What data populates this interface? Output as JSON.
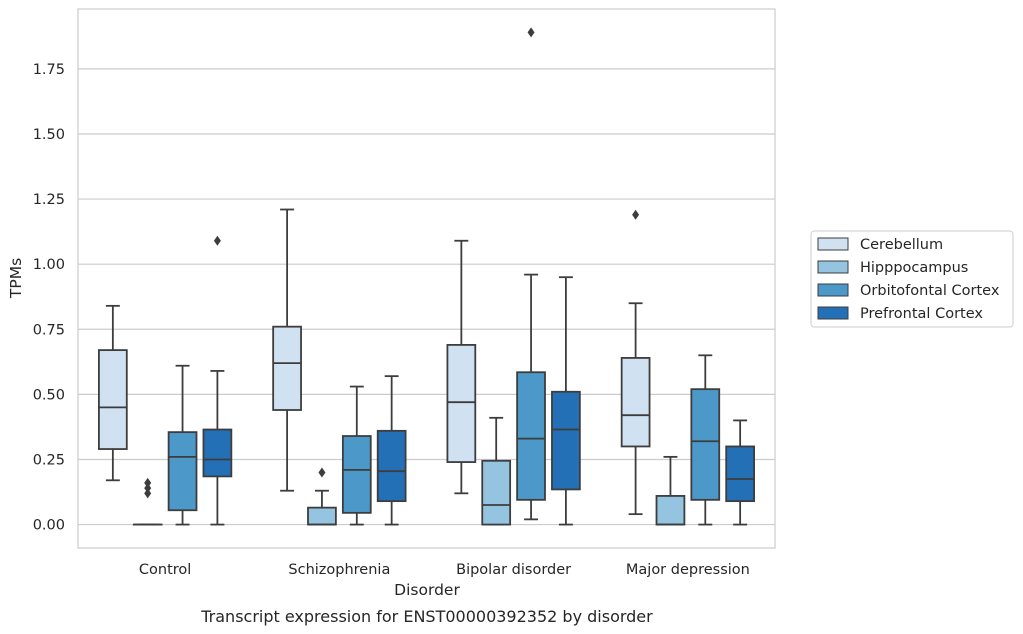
{
  "chart_data": {
    "type": "boxplot",
    "caption": "Transcript expression for ENST00000392352 by disorder",
    "xlabel": "Disorder",
    "ylabel": "TPMs",
    "categories": [
      "Control",
      "Schizophrenia",
      "Bipolar disorder",
      "Major depression"
    ],
    "y_ticks": [
      "0.00",
      "0.25",
      "0.50",
      "0.75",
      "1.00",
      "1.25",
      "1.50",
      "1.75"
    ],
    "ylim": [
      -0.09,
      1.98
    ],
    "grid": "horizontal",
    "legend_position": "right",
    "series": [
      {
        "name": "Cerebellum",
        "color": "#d0e1f2",
        "boxes": [
          {
            "whislo": 0.17,
            "q1": 0.29,
            "med": 0.45,
            "q3": 0.67,
            "whishi": 0.84,
            "fliers": []
          },
          {
            "whislo": 0.13,
            "q1": 0.44,
            "med": 0.62,
            "q3": 0.76,
            "whishi": 1.21,
            "fliers": []
          },
          {
            "whislo": 0.12,
            "q1": 0.24,
            "med": 0.47,
            "q3": 0.69,
            "whishi": 1.09,
            "fliers": []
          },
          {
            "whislo": 0.04,
            "q1": 0.3,
            "med": 0.42,
            "q3": 0.64,
            "whishi": 0.85,
            "fliers": [
              1.19
            ]
          }
        ]
      },
      {
        "name": "Hipppocampus",
        "color": "#94c4df",
        "boxes": [
          {
            "whislo": 0.0,
            "q1": 0.0,
            "med": 0.0,
            "q3": 0.0,
            "whishi": 0.0,
            "fliers": [
              0.12,
              0.14,
              0.16
            ]
          },
          {
            "whislo": 0.0,
            "q1": 0.0,
            "med": 0.0,
            "q3": 0.065,
            "whishi": 0.13,
            "fliers": [
              0.2
            ]
          },
          {
            "whislo": 0.0,
            "q1": 0.0,
            "med": 0.075,
            "q3": 0.245,
            "whishi": 0.41,
            "fliers": []
          },
          {
            "whislo": 0.0,
            "q1": 0.0,
            "med": 0.0,
            "q3": 0.11,
            "whishi": 0.26,
            "fliers": []
          }
        ]
      },
      {
        "name": "Orbitofontal Cortex",
        "color": "#4b98c9",
        "boxes": [
          {
            "whislo": 0.0,
            "q1": 0.055,
            "med": 0.26,
            "q3": 0.355,
            "whishi": 0.61,
            "fliers": []
          },
          {
            "whislo": 0.0,
            "q1": 0.045,
            "med": 0.21,
            "q3": 0.34,
            "whishi": 0.53,
            "fliers": []
          },
          {
            "whislo": 0.02,
            "q1": 0.095,
            "med": 0.33,
            "q3": 0.585,
            "whishi": 0.96,
            "fliers": [
              1.89
            ]
          },
          {
            "whislo": 0.0,
            "q1": 0.095,
            "med": 0.32,
            "q3": 0.52,
            "whishi": 0.65,
            "fliers": []
          }
        ]
      },
      {
        "name": "Prefrontal Cortex",
        "color": "#2470b7",
        "boxes": [
          {
            "whislo": 0.0,
            "q1": 0.185,
            "med": 0.25,
            "q3": 0.365,
            "whishi": 0.59,
            "fliers": [
              1.09
            ]
          },
          {
            "whislo": 0.0,
            "q1": 0.09,
            "med": 0.205,
            "q3": 0.36,
            "whishi": 0.57,
            "fliers": []
          },
          {
            "whislo": 0.0,
            "q1": 0.135,
            "med": 0.365,
            "q3": 0.51,
            "whishi": 0.95,
            "fliers": []
          },
          {
            "whislo": 0.0,
            "q1": 0.09,
            "med": 0.175,
            "q3": 0.3,
            "whishi": 0.4,
            "fliers": []
          }
        ]
      }
    ]
  }
}
